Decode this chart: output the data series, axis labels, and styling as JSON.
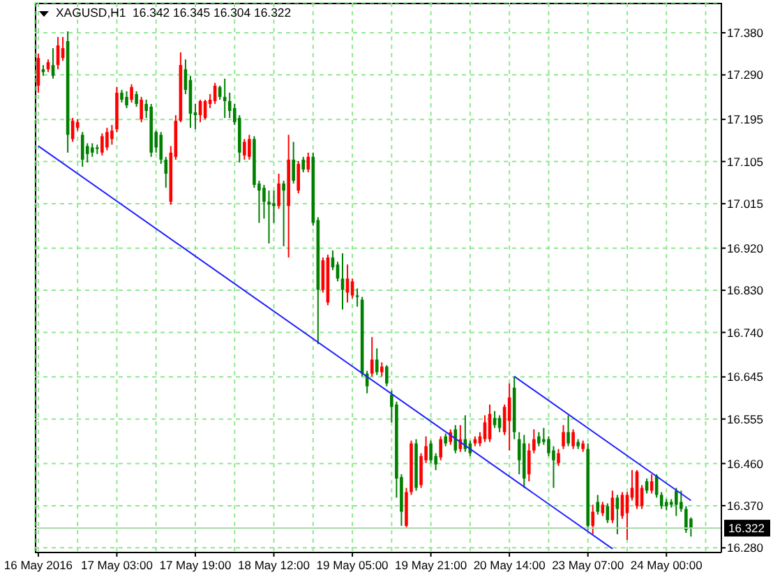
{
  "chart_data": {
    "type": "candlestick",
    "title": "XAGUSD,H1  16.342 16.345 16.304 16.322",
    "categories": [
      "16 May 2016",
      null,
      null,
      null,
      null,
      null,
      null,
      null,
      null,
      null,
      null,
      null,
      null,
      null,
      null,
      null,
      "17 May 03:00",
      null,
      null,
      null,
      null,
      null,
      null,
      null,
      null,
      null,
      null,
      null,
      null,
      null,
      null,
      null,
      "17 May 19:00",
      null,
      null,
      null,
      null,
      null,
      null,
      null,
      null,
      null,
      null,
      null,
      null,
      null,
      null,
      null,
      "18 May 12:00",
      null,
      null,
      null,
      null,
      null,
      null,
      null,
      null,
      null,
      null,
      null,
      null,
      null,
      null,
      null,
      "19 May 05:00",
      null,
      null,
      null,
      null,
      null,
      null,
      null,
      null,
      null,
      null,
      null,
      null,
      null,
      null,
      null,
      "19 May 21:00",
      null,
      null,
      null,
      null,
      null,
      null,
      null,
      null,
      null,
      null,
      null,
      null,
      null,
      null,
      null,
      "20 May 14:00",
      null,
      null,
      null,
      null,
      null,
      null,
      null,
      null,
      null,
      null,
      null,
      null,
      null,
      null,
      null,
      "23 May 07:00",
      null,
      null,
      null,
      null,
      null,
      null,
      null,
      null,
      null,
      null,
      null,
      null,
      null,
      null,
      null,
      "24 May 00:00",
      null,
      null,
      null,
      null,
      null
    ],
    "ohlc": [
      [
        17.267,
        17.335,
        17.252,
        17.326
      ],
      [
        17.302,
        17.311,
        17.288,
        17.296
      ],
      [
        17.302,
        17.323,
        17.296,
        17.317
      ],
      [
        17.311,
        17.347,
        17.282,
        17.288
      ],
      [
        17.311,
        17.371,
        17.302,
        17.353
      ],
      [
        17.326,
        17.371,
        17.32,
        17.347
      ],
      [
        17.362,
        17.383,
        17.124,
        17.162
      ],
      [
        17.153,
        17.198,
        17.147,
        17.192
      ],
      [
        17.177,
        17.195,
        17.171,
        17.189
      ],
      [
        17.162,
        17.168,
        17.094,
        17.109
      ],
      [
        17.138,
        17.144,
        17.103,
        17.121
      ],
      [
        17.135,
        17.144,
        17.115,
        17.124
      ],
      [
        17.135,
        17.141,
        17.121,
        17.132
      ],
      [
        17.124,
        17.165,
        17.118,
        17.159
      ],
      [
        17.135,
        17.177,
        17.129,
        17.168
      ],
      [
        17.153,
        17.183,
        17.141,
        17.171
      ],
      [
        17.174,
        17.264,
        17.168,
        17.252
      ],
      [
        17.252,
        17.258,
        17.231,
        17.237
      ],
      [
        17.243,
        17.255,
        17.219,
        17.225
      ],
      [
        17.237,
        17.27,
        17.231,
        17.264
      ],
      [
        17.249,
        17.255,
        17.222,
        17.228
      ],
      [
        17.195,
        17.243,
        17.189,
        17.237
      ],
      [
        17.228,
        17.237,
        17.198,
        17.213
      ],
      [
        17.222,
        17.228,
        17.115,
        17.124
      ],
      [
        17.168,
        17.171,
        17.124,
        17.135
      ],
      [
        17.162,
        17.168,
        17.1,
        17.109
      ],
      [
        17.109,
        17.115,
        17.049,
        17.079
      ],
      [
        17.019,
        17.138,
        17.013,
        17.124
      ],
      [
        17.115,
        17.204,
        17.109,
        17.192
      ],
      [
        17.192,
        17.338,
        17.189,
        17.311
      ],
      [
        17.302,
        17.323,
        17.249,
        17.258
      ],
      [
        17.279,
        17.288,
        17.177,
        17.207
      ],
      [
        17.21,
        17.228,
        17.174,
        17.204
      ],
      [
        17.204,
        17.237,
        17.189,
        17.234
      ],
      [
        17.198,
        17.237,
        17.195,
        17.234
      ],
      [
        17.228,
        17.249,
        17.219,
        17.237
      ],
      [
        17.234,
        17.273,
        17.228,
        17.267
      ],
      [
        17.264,
        17.267,
        17.237,
        17.243
      ],
      [
        17.243,
        17.282,
        17.198,
        17.234
      ],
      [
        17.234,
        17.252,
        17.198,
        17.213
      ],
      [
        17.219,
        17.228,
        17.183,
        17.189
      ],
      [
        17.198,
        17.204,
        17.103,
        17.124
      ],
      [
        17.118,
        17.153,
        17.109,
        17.147
      ],
      [
        17.115,
        17.162,
        17.109,
        17.153
      ],
      [
        17.153,
        17.159,
        17.049,
        17.055
      ],
      [
        17.058,
        17.064,
        16.974,
        17.043
      ],
      [
        17.049,
        17.055,
        16.983,
        17.019
      ],
      [
        17.019,
        17.043,
        16.93,
        17.013
      ],
      [
        17.016,
        17.043,
        16.974,
        17.01
      ],
      [
        17.01,
        17.079,
        17.004,
        17.058
      ],
      [
        17.058,
        17.064,
        16.924,
        17.043
      ],
      [
        17.01,
        17.162,
        16.9,
        17.109
      ],
      [
        17.109,
        17.147,
        17.058,
        17.064
      ],
      [
        17.043,
        17.106,
        17.037,
        17.1
      ],
      [
        17.109,
        17.115,
        17.082,
        17.088
      ],
      [
        17.088,
        17.124,
        17.082,
        17.115
      ],
      [
        17.115,
        17.124,
        16.968,
        16.974
      ],
      [
        16.98,
        16.986,
        16.715,
        16.831
      ],
      [
        16.831,
        16.9,
        16.825,
        16.894
      ],
      [
        16.804,
        16.906,
        16.798,
        16.9
      ],
      [
        16.9,
        16.915,
        16.873,
        16.879
      ],
      [
        16.885,
        16.891,
        16.849,
        16.855
      ],
      [
        16.855,
        16.909,
        16.789,
        16.831
      ],
      [
        16.825,
        16.885,
        16.804,
        16.855
      ],
      [
        16.819,
        16.855,
        16.813,
        16.849
      ],
      [
        16.819,
        16.834,
        16.795,
        16.816
      ],
      [
        16.81,
        16.816,
        16.646,
        16.652
      ],
      [
        16.652,
        16.658,
        16.61,
        16.625
      ],
      [
        16.652,
        16.73,
        16.646,
        16.682
      ],
      [
        16.682,
        16.706,
        16.649,
        16.655
      ],
      [
        16.655,
        16.676,
        16.646,
        16.667
      ],
      [
        16.667,
        16.67,
        16.625,
        16.631
      ],
      [
        16.607,
        16.616,
        16.548,
        16.581
      ],
      [
        16.586,
        16.592,
        16.387,
        16.428
      ],
      [
        16.431,
        16.437,
        16.327,
        16.357
      ],
      [
        16.327,
        16.408,
        16.324,
        16.399
      ],
      [
        16.399,
        16.509,
        16.393,
        16.503
      ],
      [
        16.503,
        16.512,
        16.402,
        16.408
      ],
      [
        16.414,
        16.482,
        16.408,
        16.476
      ],
      [
        16.467,
        16.518,
        16.461,
        16.497
      ],
      [
        16.503,
        16.509,
        16.461,
        16.467
      ],
      [
        16.476,
        16.482,
        16.446,
        16.458
      ],
      [
        16.473,
        16.518,
        16.467,
        16.512
      ],
      [
        16.518,
        16.524,
        16.497,
        16.503
      ],
      [
        16.506,
        16.533,
        16.5,
        16.527
      ],
      [
        16.533,
        16.542,
        16.482,
        16.488
      ],
      [
        16.491,
        16.542,
        16.485,
        16.512
      ],
      [
        16.512,
        16.563,
        16.485,
        16.491
      ],
      [
        16.503,
        16.509,
        16.476,
        16.482
      ],
      [
        16.503,
        16.518,
        16.497,
        16.512
      ],
      [
        16.503,
        16.527,
        16.497,
        16.518
      ],
      [
        16.512,
        16.563,
        16.506,
        16.548
      ],
      [
        16.512,
        16.586,
        16.506,
        16.566
      ],
      [
        16.557,
        16.572,
        16.536,
        16.542
      ],
      [
        16.557,
        16.563,
        16.527,
        16.536
      ],
      [
        16.527,
        16.586,
        16.521,
        16.581
      ],
      [
        16.551,
        16.631,
        16.488,
        16.601
      ],
      [
        16.622,
        16.646,
        16.512,
        16.527
      ],
      [
        16.512,
        16.527,
        16.437,
        16.467
      ],
      [
        16.503,
        16.521,
        16.408,
        16.428
      ],
      [
        16.437,
        16.503,
        16.422,
        16.488
      ],
      [
        16.488,
        16.533,
        16.482,
        16.512
      ],
      [
        16.518,
        16.527,
        16.497,
        16.503
      ],
      [
        16.512,
        16.536,
        16.5,
        16.506
      ],
      [
        16.512,
        16.518,
        16.476,
        16.482
      ],
      [
        16.488,
        16.497,
        16.408,
        16.467
      ],
      [
        16.461,
        16.491,
        16.455,
        16.482
      ],
      [
        16.497,
        16.542,
        16.491,
        16.527
      ],
      [
        16.527,
        16.563,
        16.497,
        16.503
      ],
      [
        16.497,
        16.533,
        16.491,
        16.527
      ],
      [
        16.506,
        16.512,
        16.491,
        16.497
      ],
      [
        16.491,
        16.509,
        16.485,
        16.503
      ],
      [
        16.491,
        16.503,
        16.318,
        16.327
      ],
      [
        16.327,
        16.372,
        16.309,
        16.357
      ],
      [
        16.378,
        16.393,
        16.351,
        16.357
      ],
      [
        16.354,
        16.378,
        16.348,
        16.372
      ],
      [
        16.369,
        16.375,
        16.333,
        16.339
      ],
      [
        16.339,
        16.402,
        16.333,
        16.387
      ],
      [
        16.387,
        16.393,
        16.309,
        16.363
      ],
      [
        16.348,
        16.399,
        16.342,
        16.393
      ],
      [
        16.354,
        16.399,
        16.297,
        16.393
      ],
      [
        16.387,
        16.446,
        16.381,
        16.408
      ],
      [
        16.369,
        16.446,
        16.363,
        16.443
      ],
      [
        16.369,
        16.414,
        16.363,
        16.408
      ],
      [
        16.422,
        16.428,
        16.396,
        16.402
      ],
      [
        16.402,
        16.437,
        16.396,
        16.422
      ],
      [
        16.434,
        16.437,
        16.387,
        16.393
      ],
      [
        16.393,
        16.399,
        16.363,
        16.369
      ],
      [
        16.378,
        16.384,
        16.36,
        16.369
      ],
      [
        16.378,
        16.384,
        16.366,
        16.372
      ],
      [
        16.402,
        16.408,
        16.348,
        16.372
      ],
      [
        16.378,
        16.402,
        16.357,
        16.363
      ],
      [
        16.363,
        16.369,
        16.312,
        16.318
      ],
      [
        16.342,
        16.345,
        16.304,
        16.322
      ]
    ],
    "colors": [
      "#ff0000",
      "#008000",
      "#ff0000",
      "#008000",
      "#ff0000",
      "#ff0000",
      "#008000",
      "#ff0000",
      "#ff0000",
      "#008000",
      "#008000",
      "#008000",
      "#008000",
      "#ff0000",
      "#ff0000",
      "#ff0000",
      "#ff0000",
      "#008000",
      "#008000",
      "#ff0000",
      "#008000",
      "#ff0000",
      "#008000",
      "#008000",
      "#008000",
      "#008000",
      "#008000",
      "#ff0000",
      "#ff0000",
      "#ff0000",
      "#008000",
      "#008000",
      "#008000",
      "#ff0000",
      "#ff0000",
      "#ff0000",
      "#ff0000",
      "#008000",
      "#008000",
      "#008000",
      "#008000",
      "#008000",
      "#ff0000",
      "#ff0000",
      "#008000",
      "#008000",
      "#008000",
      "#008000",
      "#008000",
      "#ff0000",
      "#008000",
      "#ff0000",
      "#008000",
      "#ff0000",
      "#008000",
      "#ff0000",
      "#008000",
      "#008000",
      "#ff0000",
      "#ff0000",
      "#008000",
      "#008000",
      "#008000",
      "#ff0000",
      "#ff0000",
      "#008000",
      "#008000",
      "#008000",
      "#ff0000",
      "#008000",
      "#ff0000",
      "#008000",
      "#008000",
      "#008000",
      "#008000",
      "#ff0000",
      "#ff0000",
      "#008000",
      "#ff0000",
      "#ff0000",
      "#008000",
      "#008000",
      "#ff0000",
      "#008000",
      "#ff0000",
      "#008000",
      "#ff0000",
      "#008000",
      "#008000",
      "#ff0000",
      "#ff0000",
      "#ff0000",
      "#ff0000",
      "#008000",
      "#008000",
      "#ff0000",
      "#ff0000",
      "#008000",
      "#008000",
      "#008000",
      "#ff0000",
      "#ff0000",
      "#008000",
      "#008000",
      "#008000",
      "#008000",
      "#ff0000",
      "#ff0000",
      "#008000",
      "#ff0000",
      "#008000",
      "#ff0000",
      "#008000",
      "#ff0000",
      "#008000",
      "#ff0000",
      "#008000",
      "#ff0000",
      "#008000",
      "#ff0000",
      "#ff0000",
      "#ff0000",
      "#ff0000",
      "#ff0000",
      "#008000",
      "#ff0000",
      "#008000",
      "#008000",
      "#008000",
      "#008000",
      "#008000",
      "#008000",
      "#008000",
      "#008000"
    ],
    "ylim": [
      16.27,
      17.444
    ],
    "yticks": [
      {
        "value": 17.38,
        "label": "17.380"
      },
      {
        "value": 17.29,
        "label": "17.290"
      },
      17.195,
      17.105,
      17.015,
      {
        "value": 16.92,
        "label": "16.920"
      },
      {
        "value": 16.83,
        "label": "16.830"
      },
      {
        "value": 16.74,
        "label": "16.740"
      },
      16.645,
      16.555,
      {
        "value": 16.46,
        "label": "16.460"
      },
      {
        "value": 16.37,
        "label": "16.370"
      },
      {
        "value": 16.28,
        "label": "16.280"
      }
    ],
    "grid": true,
    "ref_lines": [
      {
        "axis": "y",
        "value": 16.322,
        "label": "16.322",
        "color": "#a9d9a9"
      }
    ],
    "series": [
      {
        "type": "line",
        "color": "#2020ff",
        "values": [
          17.138,
          null,
          null,
          null,
          null,
          null,
          null,
          null,
          null,
          null,
          null,
          null,
          null,
          null,
          null,
          null,
          null,
          null,
          null,
          null,
          null,
          null,
          null,
          null,
          null,
          null,
          null,
          null,
          null,
          null,
          null,
          null,
          null,
          null,
          null,
          null,
          null,
          null,
          null,
          null,
          null,
          null,
          null,
          null,
          null,
          null,
          null,
          null,
          null,
          null,
          null,
          null,
          null,
          null,
          null,
          null,
          null,
          null,
          null,
          null,
          null,
          null,
          null,
          null,
          null,
          null,
          null,
          null,
          null,
          null,
          null,
          null,
          null,
          null,
          null,
          null,
          null,
          null,
          null,
          null,
          null,
          null,
          null,
          null,
          null,
          null,
          null,
          null,
          null,
          null,
          null,
          null,
          null,
          null,
          null,
          null,
          null,
          null,
          null,
          null,
          null,
          null,
          null,
          null,
          null,
          null,
          null,
          null,
          null,
          null,
          null,
          null,
          null,
          null,
          null,
          null,
          null,
          16.278,
          null,
          null,
          null,
          null,
          null,
          null,
          null,
          null,
          null,
          null,
          null,
          null,
          null,
          null,
          null,
          null
        ]
      },
      {
        "type": "line",
        "color": "#2020ff",
        "values": [
          null,
          null,
          null,
          null,
          null,
          null,
          null,
          null,
          null,
          null,
          null,
          null,
          null,
          null,
          null,
          null,
          null,
          null,
          null,
          null,
          null,
          null,
          null,
          null,
          null,
          null,
          null,
          null,
          null,
          null,
          null,
          null,
          null,
          null,
          null,
          null,
          null,
          null,
          null,
          null,
          null,
          null,
          null,
          null,
          null,
          null,
          null,
          null,
          null,
          null,
          null,
          null,
          null,
          null,
          null,
          null,
          null,
          null,
          null,
          null,
          null,
          null,
          null,
          null,
          null,
          null,
          null,
          null,
          null,
          null,
          null,
          null,
          null,
          null,
          null,
          null,
          null,
          null,
          null,
          null,
          null,
          null,
          null,
          null,
          null,
          null,
          null,
          null,
          null,
          null,
          null,
          null,
          null,
          null,
          null,
          null,
          null,
          16.646,
          null,
          null,
          null,
          null,
          null,
          null,
          null,
          null,
          null,
          null,
          null,
          null,
          null,
          null,
          null,
          null,
          null,
          null,
          null,
          null,
          null,
          null,
          null,
          null,
          null,
          null,
          null,
          null,
          null,
          null,
          null,
          null,
          null,
          null,
          null,
          16.381
        ]
      }
    ]
  }
}
